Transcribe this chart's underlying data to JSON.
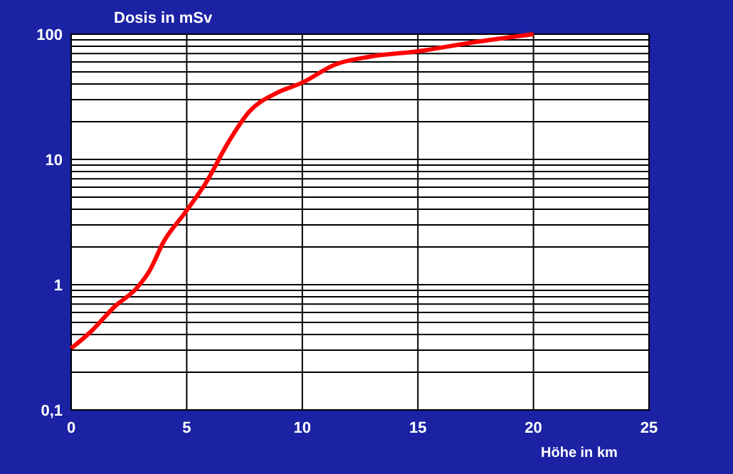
{
  "chart_data": {
    "type": "line",
    "xlabel": "Höhe in km",
    "ylabel": "Dosis in mSv",
    "log": "y",
    "grid": true,
    "marker": "none",
    "line_style": "solid",
    "xlim": [
      0,
      25
    ],
    "xticks": [
      0,
      5,
      10,
      15,
      20,
      25
    ],
    "ylim": [
      0.1,
      100
    ],
    "yticks": [
      {
        "value": 0.1,
        "label": "0,1"
      },
      {
        "value": 0.2,
        "label": null
      },
      {
        "value": 0.3,
        "label": null
      },
      {
        "value": 0.4,
        "label": null
      },
      {
        "value": 0.5,
        "label": null
      },
      {
        "value": 0.6,
        "label": null
      },
      {
        "value": 0.7,
        "label": null
      },
      {
        "value": 0.8,
        "label": null
      },
      {
        "value": 0.9,
        "label": null
      },
      1,
      {
        "value": 2,
        "label": null
      },
      {
        "value": 3,
        "label": null
      },
      {
        "value": 4,
        "label": null
      },
      {
        "value": 5,
        "label": null
      },
      {
        "value": 6,
        "label": null
      },
      {
        "value": 7,
        "label": null
      },
      {
        "value": 8,
        "label": null
      },
      {
        "value": 9,
        "label": null
      },
      10,
      {
        "value": 20,
        "label": null
      },
      {
        "value": 30,
        "label": null
      },
      {
        "value": 40,
        "label": null
      },
      {
        "value": 50,
        "label": null
      },
      {
        "value": 60,
        "label": null
      },
      {
        "value": 70,
        "label": null
      },
      {
        "value": 80,
        "label": null
      },
      {
        "value": 90,
        "label": null
      },
      100
    ],
    "x": [
      0,
      0.9,
      1.85,
      2.9,
      3.4,
      4,
      4.9,
      5.85,
      6.8,
      7.7,
      8.9,
      10,
      11.4,
      12.9,
      15,
      17.2,
      20
    ],
    "series": [
      {
        "color": "#ff0000",
        "values": [
          0.31,
          0.43,
          0.66,
          0.97,
          1.3,
          2.2,
          3.7,
          6.6,
          13.7,
          24,
          34,
          41,
          57,
          66,
          73,
          85,
          100
        ]
      }
    ]
  }
}
